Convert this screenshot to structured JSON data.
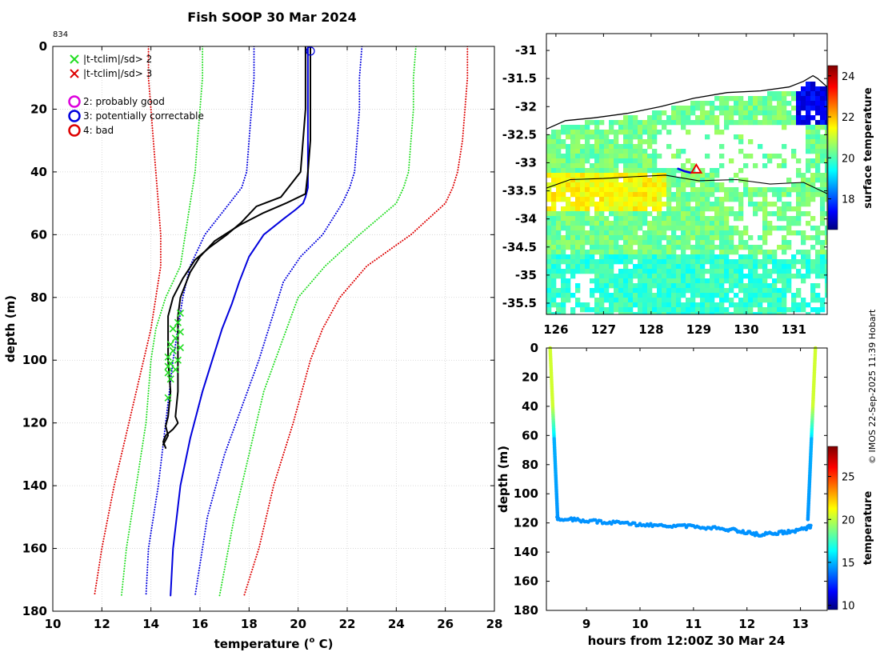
{
  "figure": {
    "title": "Fish SOOP 30 Mar 2024",
    "profile_id": "834",
    "credit": "© IMOS 22-Sep-2025 11:39 Hobart"
  },
  "chart_data": [
    {
      "type": "line",
      "name": "profile",
      "xlabel": "temperature (",
      "xlabel_sup": "o",
      "xlabel_tail": " C)",
      "ylabel": "depth (m)",
      "xlim": [
        10,
        28
      ],
      "ylim": [
        0,
        180
      ],
      "x_ticks": [
        10,
        12,
        14,
        16,
        18,
        20,
        22,
        24,
        26,
        28
      ],
      "y_ticks": [
        0,
        20,
        40,
        60,
        80,
        100,
        120,
        140,
        160,
        180
      ],
      "grid": true,
      "legend": [
        {
          "label": "|t-tclim|/sd> 2",
          "color": "#22dd22",
          "marker": "x"
        },
        {
          "label": "|t-tclim|/sd> 3",
          "color": "#dd0000",
          "marker": "x"
        },
        {
          "label": "2: probably good",
          "color": "#dd00dd",
          "marker": "o"
        },
        {
          "label": "3: potentially correctable",
          "color": "#0000dd",
          "marker": "o"
        },
        {
          "label": "4: bad",
          "color": "#dd0000",
          "marker": "o"
        }
      ],
      "series": [
        {
          "name": "clim_mean",
          "style": "solid",
          "color": "#0000dd",
          "x": [
            20.4,
            20.4,
            20.4,
            20.4,
            20.4,
            20.4,
            20.3,
            20.2,
            19.9,
            19.4,
            18.6,
            18.0,
            17.6,
            17.3,
            16.9,
            16.5,
            16.1,
            15.6,
            15.2,
            14.9,
            14.8
          ],
          "y": [
            0,
            10,
            20,
            30,
            40,
            45,
            48,
            50,
            52,
            55,
            60,
            67,
            75,
            82,
            90,
            100,
            110,
            125,
            140,
            160,
            175
          ]
        },
        {
          "name": "clim_lo1",
          "style": "dotted",
          "color": "#0000dd",
          "x": [
            18.2,
            18.2,
            18.1,
            18.0,
            17.9,
            17.7,
            17.0,
            16.2,
            15.6,
            15.3,
            15.1,
            14.9,
            14.6,
            14.3,
            13.9,
            13.8
          ],
          "y": [
            0,
            10,
            20,
            30,
            40,
            45,
            52,
            60,
            70,
            80,
            90,
            100,
            120,
            140,
            160,
            175
          ]
        },
        {
          "name": "clim_hi1",
          "style": "dotted",
          "color": "#0000dd",
          "x": [
            22.6,
            22.5,
            22.5,
            22.4,
            22.3,
            22.1,
            21.8,
            21.0,
            20.1,
            19.4,
            19.0,
            18.4,
            17.7,
            17.0,
            16.3,
            15.8
          ],
          "y": [
            0,
            10,
            20,
            30,
            40,
            45,
            50,
            60,
            67,
            75,
            85,
            100,
            115,
            130,
            150,
            175
          ]
        },
        {
          "name": "clim_lo2",
          "style": "dotted",
          "color": "#22dd22",
          "x": [
            16.1,
            16.1,
            16.0,
            15.9,
            15.8,
            15.6,
            15.4,
            15.2,
            14.6,
            14.2,
            14.0,
            13.8,
            13.4,
            13.0,
            12.8
          ],
          "y": [
            0,
            10,
            20,
            30,
            40,
            50,
            60,
            70,
            80,
            90,
            100,
            120,
            140,
            160,
            175
          ]
        },
        {
          "name": "clim_hi2",
          "style": "dotted",
          "color": "#22dd22",
          "x": [
            24.8,
            24.7,
            24.7,
            24.6,
            24.5,
            24.3,
            24.0,
            22.5,
            21.1,
            20.0,
            19.3,
            18.6,
            18.0,
            17.4,
            16.8
          ],
          "y": [
            0,
            10,
            20,
            30,
            40,
            45,
            50,
            60,
            70,
            80,
            95,
            110,
            130,
            150,
            175
          ]
        },
        {
          "name": "clim_lo3",
          "style": "dotted",
          "color": "#dd0000",
          "x": [
            13.9,
            13.9,
            14.0,
            14.1,
            14.2,
            14.3,
            14.4,
            14.4,
            14.2,
            14.0,
            13.7,
            13.1,
            12.5,
            12.0,
            11.7
          ],
          "y": [
            0,
            10,
            20,
            30,
            40,
            50,
            60,
            70,
            80,
            90,
            100,
            120,
            140,
            160,
            175
          ]
        },
        {
          "name": "clim_hi3",
          "style": "dotted",
          "color": "#dd0000",
          "x": [
            26.9,
            26.9,
            26.8,
            26.7,
            26.5,
            26.3,
            26.0,
            24.6,
            22.8,
            21.7,
            21.0,
            20.5,
            19.8,
            19.0,
            18.4,
            17.8
          ],
          "y": [
            0,
            10,
            20,
            30,
            40,
            45,
            50,
            60,
            70,
            80,
            90,
            100,
            120,
            140,
            160,
            175
          ]
        },
        {
          "name": "measured_a",
          "style": "solid",
          "color": "#000000",
          "width": 2,
          "x": [
            20.5,
            20.5,
            20.5,
            20.5,
            20.4,
            20.3,
            19.5,
            18.6,
            17.6,
            16.6,
            16.0,
            15.6,
            15.2,
            15.1,
            15.1,
            15.1,
            15.1,
            15.0,
            15.1,
            14.9,
            14.6,
            14.5,
            14.6
          ],
          "y": [
            0,
            10,
            20,
            30,
            40,
            47,
            50,
            53,
            57,
            62,
            67,
            72,
            80,
            86,
            92,
            100,
            110,
            118,
            120,
            122,
            124,
            126,
            128
          ]
        },
        {
          "name": "measured_b",
          "style": "solid",
          "color": "#000000",
          "width": 2,
          "x": [
            20.3,
            20.3,
            20.3,
            20.2,
            20.1,
            19.3,
            18.3,
            17.7,
            17.1,
            16.4,
            15.8,
            15.3,
            14.9,
            14.7,
            14.7,
            14.7,
            14.8,
            14.7,
            14.6,
            14.7,
            14.5
          ],
          "y": [
            0,
            10,
            20,
            30,
            40,
            48,
            51,
            56,
            60,
            64,
            68,
            74,
            80,
            86,
            92,
            100,
            110,
            118,
            121,
            124,
            127
          ]
        }
      ],
      "flag_points_x": [
        15.2,
        15.1,
        14.9,
        15.2,
        15.0,
        14.8,
        15.2,
        14.9,
        14.7,
        15.1,
        14.8,
        14.7,
        15.0,
        14.7,
        14.8,
        14.7
      ],
      "flag_points_y": [
        85,
        88,
        90,
        91,
        93,
        95,
        96,
        97,
        99,
        100,
        101,
        102,
        103,
        104,
        106,
        112
      ],
      "marker_surface": {
        "x": 20.5,
        "y": 1.5
      }
    },
    {
      "type": "heatmap",
      "name": "sst_map",
      "xlim": [
        125.8,
        131.7
      ],
      "ylim": [
        -35.7,
        -30.7
      ],
      "x_ticks": [
        126,
        127,
        128,
        129,
        130,
        131
      ],
      "y_ticks": [
        -31,
        -31.5,
        -32,
        -32.5,
        -33,
        -33.5,
        -34,
        -34.5,
        -35,
        -35.5
      ],
      "y_tick_labels": [
        "-31",
        "-31.5",
        "-32",
        "-32.5",
        "-33",
        "-33.5",
        "-34",
        "-34.5",
        "-35",
        "-35.5"
      ],
      "colorbar_label": "surface temperature",
      "colorbar_range": [
        16.5,
        24.5
      ],
      "colorbar_ticks": [
        18,
        20,
        22,
        24
      ],
      "coastline": {
        "lon": [
          125.8,
          126.2,
          126.8,
          127.5,
          128.2,
          128.9,
          129.6,
          130.3,
          130.9,
          131.2,
          131.4,
          131.5,
          131.7
        ],
        "lat": [
          -32.4,
          -32.25,
          -32.2,
          -32.12,
          -32.0,
          -31.85,
          -31.75,
          -31.72,
          -31.65,
          -31.55,
          -31.45,
          -31.5,
          -31.65
        ]
      },
      "shelf_line": {
        "lon": [
          125.8,
          126.3,
          127.0,
          127.6,
          128.3,
          129.0,
          129.8,
          130.5,
          131.2,
          131.7
        ],
        "lat": [
          -33.45,
          -33.3,
          -33.28,
          -33.25,
          -33.22,
          -33.32,
          -33.3,
          -33.38,
          -33.35,
          -33.55
        ]
      },
      "track": {
        "lon": [
          128.55,
          128.7,
          128.85
        ],
        "lat": [
          -33.1,
          -33.15,
          -33.18
        ]
      },
      "drop_marker": {
        "lon": 128.95,
        "lat": -33.12
      }
    },
    {
      "type": "scatter",
      "name": "depth_time",
      "xlabel": "hours from 12:00Z 30 Mar 24",
      "ylabel": "depth (m)",
      "xlim": [
        8.25,
        13.5
      ],
      "ylim": [
        0,
        180
      ],
      "x_ticks": [
        9,
        10,
        11,
        12,
        13
      ],
      "y_ticks": [
        0,
        20,
        40,
        60,
        80,
        100,
        120,
        140,
        160,
        180
      ],
      "colorbar_label": "temperature",
      "colorbar_range": [
        9.5,
        28.5
      ],
      "colorbar_ticks": [
        10,
        15,
        20,
        25
      ],
      "descent_start_hours": 8.32,
      "ascent_end_hours": 13.28,
      "bottom": {
        "hours": [
          8.45,
          8.8,
          9.2,
          9.6,
          10.0,
          10.4,
          10.8,
          11.2,
          11.6,
          11.9,
          12.2,
          12.5,
          12.8,
          13.1,
          13.2
        ],
        "depth": [
          117,
          118,
          119,
          120,
          121,
          122,
          122,
          123,
          124,
          126,
          128,
          127,
          126,
          124,
          122
        ]
      }
    }
  ]
}
